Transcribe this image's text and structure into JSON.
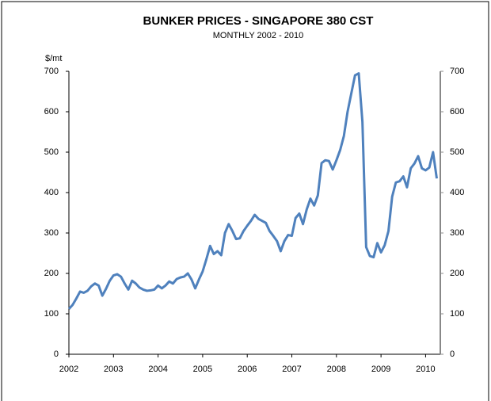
{
  "chart_data": {
    "type": "line",
    "title": "BUNKER PRICES - SINGAPORE 380 CST",
    "subtitle": "MONTHLY 2002 - 2010",
    "y_label": "$/mt",
    "x": [
      2002,
      2002.083,
      2002.167,
      2002.25,
      2002.333,
      2002.417,
      2002.5,
      2002.583,
      2002.667,
      2002.75,
      2002.833,
      2002.917,
      2003,
      2003.083,
      2003.167,
      2003.25,
      2003.333,
      2003.417,
      2003.5,
      2003.583,
      2003.667,
      2003.75,
      2003.833,
      2003.917,
      2004,
      2004.083,
      2004.167,
      2004.25,
      2004.333,
      2004.417,
      2004.5,
      2004.583,
      2004.667,
      2004.75,
      2004.833,
      2004.917,
      2005,
      2005.083,
      2005.167,
      2005.25,
      2005.333,
      2005.417,
      2005.5,
      2005.583,
      2005.667,
      2005.75,
      2005.833,
      2005.917,
      2006,
      2006.083,
      2006.167,
      2006.25,
      2006.333,
      2006.417,
      2006.5,
      2006.583,
      2006.667,
      2006.75,
      2006.833,
      2006.917,
      2007,
      2007.083,
      2007.167,
      2007.25,
      2007.333,
      2007.417,
      2007.5,
      2007.583,
      2007.667,
      2007.75,
      2007.833,
      2007.917,
      2008,
      2008.083,
      2008.167,
      2008.25,
      2008.333,
      2008.417,
      2008.5,
      2008.583,
      2008.667,
      2008.75,
      2008.833,
      2008.917,
      2009,
      2009.083,
      2009.167,
      2009.25,
      2009.333,
      2009.417,
      2009.5,
      2009.583,
      2009.667,
      2009.75,
      2009.833,
      2009.917,
      2010,
      2010.083,
      2010.167,
      2010.25
    ],
    "series": [
      {
        "name": "Singapore 380 CST",
        "color": "#4f81bd",
        "values": [
          112,
          122,
          138,
          155,
          152,
          157,
          168,
          175,
          170,
          145,
          162,
          182,
          195,
          198,
          192,
          175,
          160,
          182,
          175,
          165,
          160,
          157,
          158,
          160,
          170,
          163,
          170,
          180,
          175,
          186,
          190,
          192,
          200,
          185,
          163,
          185,
          205,
          235,
          268,
          248,
          255,
          245,
          300,
          322,
          305,
          285,
          287,
          305,
          318,
          330,
          345,
          335,
          330,
          325,
          305,
          293,
          280,
          255,
          280,
          295,
          293,
          337,
          348,
          322,
          358,
          385,
          368,
          393,
          473,
          480,
          478,
          457,
          480,
          505,
          540,
          600,
          645,
          690,
          695,
          575,
          265,
          243,
          240,
          275,
          252,
          270,
          305,
          390,
          425,
          428,
          440,
          413,
          460,
          472,
          490,
          460,
          455,
          462,
          500,
          435
        ]
      }
    ],
    "xlim": [
      2002,
      2010.33
    ],
    "xticks": [
      2002,
      2003,
      2004,
      2005,
      2006,
      2007,
      2008,
      2009,
      2010
    ],
    "ylim": [
      0,
      700
    ],
    "yticks": [
      0,
      100,
      200,
      300,
      400,
      500,
      600,
      700
    ],
    "y2lim": [
      0,
      700
    ],
    "y2ticks": [
      0,
      100,
      200,
      300,
      400,
      500,
      600,
      700
    ],
    "grid": false
  }
}
